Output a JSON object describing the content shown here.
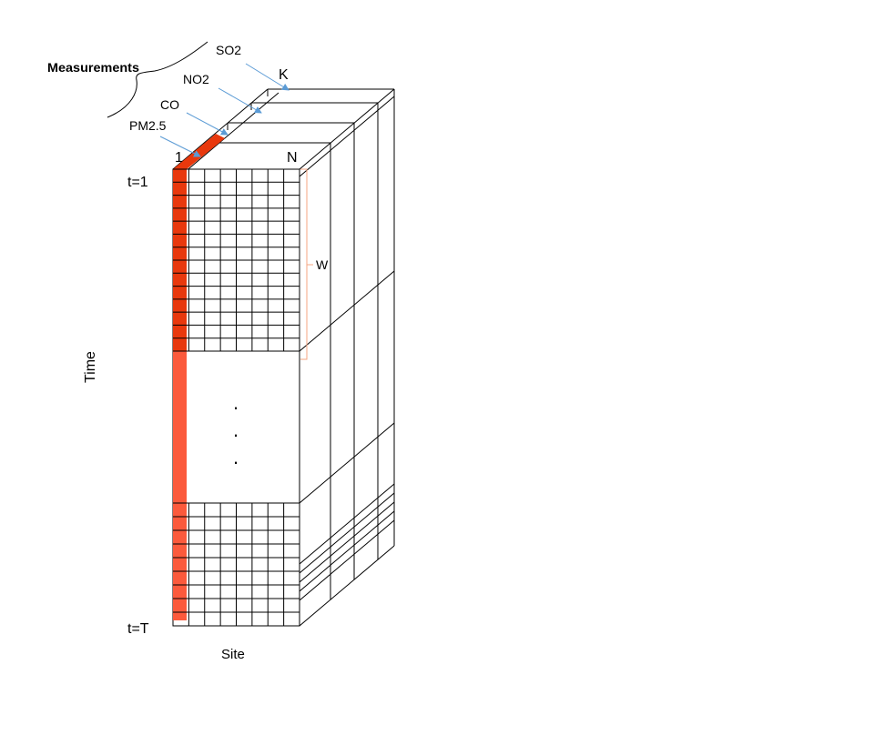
{
  "labels": {
    "measurements": "Measurements",
    "so2": "SO2",
    "no2": "NO2",
    "co": "CO",
    "pm25": "PM2.5",
    "k": "K",
    "one": "1",
    "n": "N",
    "t1": "t=1",
    "tT": "t=T",
    "w": "W",
    "time": "Time",
    "site": "Site",
    "dot": "."
  },
  "colors": {
    "line": "#000000",
    "red_strong": "#e8380d",
    "red_light": "#fb5a3c",
    "arrow": "#5b9bd5",
    "bracket": "#f4a582"
  }
}
